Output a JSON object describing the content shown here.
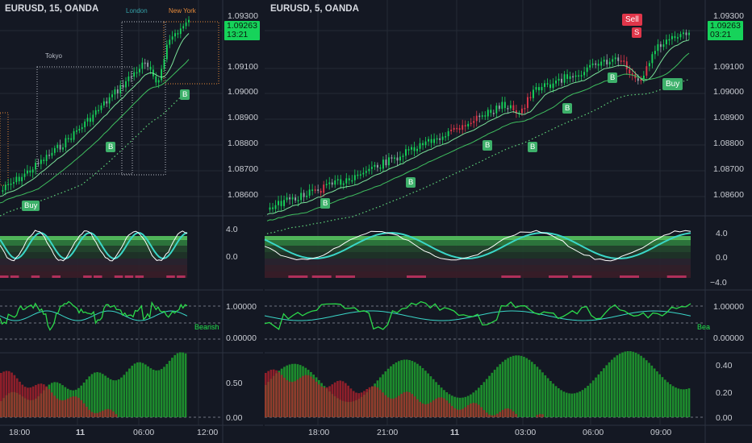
{
  "left_chart": {
    "title": "EURUSD, 15, OANDA",
    "sessions": [
      {
        "name": "London",
        "color": "#35a0a7"
      },
      {
        "name": "New York",
        "color": "#e68a3a"
      },
      {
        "name": "Tokyo",
        "color": "#b7bcc6"
      }
    ],
    "price_axis": [
      "1.09300",
      "1.09100",
      "1.09000",
      "1.08900",
      "1.08800",
      "1.08700",
      "1.08600"
    ],
    "last_price": "1.09263",
    "countdown": "13:21",
    "signals": [
      {
        "label": "Buy"
      },
      {
        "label": "B"
      },
      {
        "label": "B"
      }
    ],
    "osc1_axis": [
      "4.0",
      "0.0"
    ],
    "osc2_axis": [
      "1.00000",
      "0.00000"
    ],
    "osc2_label": "Bearish",
    "osc3_axis": [
      "0.50",
      "0.00"
    ],
    "time_axis": [
      "18:00",
      "11",
      "06:00",
      "12:00"
    ]
  },
  "right_chart": {
    "title": "EURUSD, 5, OANDA",
    "price_axis": [
      "1.09300",
      "1.09100",
      "1.09000",
      "1.08900",
      "1.08800",
      "1.08700",
      "1.08600"
    ],
    "last_price": "1.09263",
    "countdown": "03:21",
    "signals": [
      {
        "label": "Sell"
      },
      {
        "label": "S"
      },
      {
        "label": "Buy"
      },
      {
        "label": "B"
      },
      {
        "label": "B"
      },
      {
        "label": "B"
      },
      {
        "label": "B"
      },
      {
        "label": "B"
      },
      {
        "label": "B"
      }
    ],
    "osc1_axis": [
      "4.0",
      "0.0",
      "−4.0"
    ],
    "osc2_axis": [
      "1.00000",
      "0.00000"
    ],
    "osc2_label": "Bea",
    "osc3_axis": [
      "0.40",
      "0.20",
      "0.00"
    ],
    "time_axis": [
      "18:00",
      "21:00",
      "11",
      "03:00",
      "06:00",
      "09:00"
    ]
  },
  "colors": {
    "background": "#141823",
    "bull": "#16d35a",
    "bear": "#e0364a",
    "teal": "#3ad6c8",
    "grid": "#252a36"
  }
}
